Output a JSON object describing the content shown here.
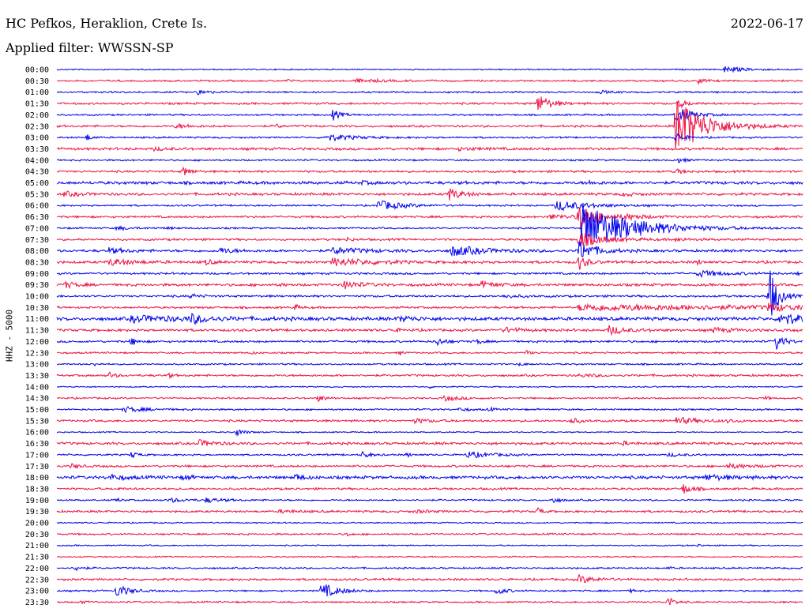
{
  "header": {
    "station": "HC Pefkos, Heraklion, Crete Is.",
    "filter": "Applied filter: WWSSN-SP",
    "date": "2022-06-17"
  },
  "chart_data": {
    "type": "line",
    "title": "HC Pefkos, Heraklion, Crete Is.",
    "subtitle": "Applied filter: WWSSN-SP",
    "date": "2022-06-17",
    "ylabel": "HHZ - 5000",
    "xlabel": "",
    "colors": {
      "even_row": "#0000ee",
      "odd_row": "#ee1144"
    },
    "rows": [
      {
        "label": "00:00",
        "noise": 0.3,
        "events": [
          {
            "t": 0.895,
            "a": 1.3,
            "d": 0.025
          }
        ]
      },
      {
        "label": "00:30",
        "noise": 0.4,
        "events": [
          {
            "t": 0.4,
            "a": 0.6,
            "d": 0.04
          },
          {
            "t": 0.86,
            "a": 1.0,
            "d": 0.01
          },
          {
            "t": 0.31,
            "a": 0.5,
            "d": 0.005
          }
        ]
      },
      {
        "label": "01:00",
        "noise": 0.4,
        "events": [
          {
            "t": 0.19,
            "a": 1.0,
            "d": 0.01
          },
          {
            "t": 0.73,
            "a": 0.6,
            "d": 0.01
          }
        ]
      },
      {
        "label": "01:30",
        "noise": 0.5,
        "events": [
          {
            "t": 0.645,
            "a": 3.5,
            "d": 0.015
          },
          {
            "t": 0.835,
            "a": 1.6,
            "d": 0.01
          }
        ]
      },
      {
        "label": "02:00",
        "noise": 0.4,
        "events": [
          {
            "t": 0.37,
            "a": 2.0,
            "d": 0.01
          },
          {
            "t": 0.83,
            "a": 3.0,
            "d": 0.02
          }
        ]
      },
      {
        "label": "02:30",
        "noise": 0.5,
        "events": [
          {
            "t": 0.83,
            "a": 12,
            "d": 0.035
          },
          {
            "t": 0.16,
            "a": 0.8,
            "d": 0.02
          },
          {
            "t": 0.295,
            "a": 0.8,
            "d": 0.005
          }
        ]
      },
      {
        "label": "03:00",
        "noise": 0.4,
        "events": [
          {
            "t": 0.04,
            "a": 1.3,
            "d": 0.006
          },
          {
            "t": 0.36,
            "a": 1.3,
            "d": 0.035
          },
          {
            "t": 0.83,
            "a": 2.0,
            "d": 0.01
          }
        ]
      },
      {
        "label": "03:30",
        "noise": 0.6,
        "events": [
          {
            "t": 0.13,
            "a": 0.5,
            "d": 0.02
          },
          {
            "t": 0.54,
            "a": 0.5,
            "d": 0.03
          }
        ]
      },
      {
        "label": "04:00",
        "noise": 0.4,
        "events": [
          {
            "t": 0.83,
            "a": 1.2,
            "d": 0.01
          }
        ]
      },
      {
        "label": "04:30",
        "noise": 0.5,
        "events": [
          {
            "t": 0.17,
            "a": 2.0,
            "d": 0.008
          },
          {
            "t": 0.83,
            "a": 1.0,
            "d": 0.01
          }
        ]
      },
      {
        "label": "05:00",
        "noise": 0.7,
        "events": [
          {
            "t": 0.41,
            "a": 0.6,
            "d": 0.01
          },
          {
            "t": 0.71,
            "a": 0.5,
            "d": 0.02
          }
        ]
      },
      {
        "label": "05:30",
        "noise": 0.6,
        "events": [
          {
            "t": 0.525,
            "a": 2.5,
            "d": 0.015
          },
          {
            "t": 0.01,
            "a": 0.8,
            "d": 0.02
          },
          {
            "t": 0.76,
            "a": 0.8,
            "d": 0.01
          }
        ]
      },
      {
        "label": "06:00",
        "noise": 0.4,
        "events": [
          {
            "t": 0.43,
            "a": 2.0,
            "d": 0.03
          },
          {
            "t": 0.67,
            "a": 2.0,
            "d": 0.04
          }
        ]
      },
      {
        "label": "06:30",
        "noise": 0.5,
        "events": [
          {
            "t": 0.7,
            "a": 6.0,
            "d": 0.02
          },
          {
            "t": 0.66,
            "a": 0.8,
            "d": 0.05
          },
          {
            "t": 0.76,
            "a": 0.8,
            "d": 0.03
          }
        ]
      },
      {
        "label": "07:00",
        "noise": 0.4,
        "events": [
          {
            "t": 0.705,
            "a": 10,
            "d": 0.06
          },
          {
            "t": 0.08,
            "a": 0.6,
            "d": 0.02
          },
          {
            "t": 0.15,
            "a": 0.5,
            "d": 0.005
          }
        ]
      },
      {
        "label": "07:30",
        "noise": 0.5,
        "events": [
          {
            "t": 0.39,
            "a": 0.8,
            "d": 0.005
          },
          {
            "t": 0.7,
            "a": 3.0,
            "d": 0.03
          },
          {
            "t": 0.83,
            "a": 0.5,
            "d": 0.02
          }
        ]
      },
      {
        "label": "08:00",
        "noise": 0.6,
        "events": [
          {
            "t": 0.07,
            "a": 1.0,
            "d": 0.02
          },
          {
            "t": 0.22,
            "a": 1.2,
            "d": 0.015
          },
          {
            "t": 0.37,
            "a": 1.2,
            "d": 0.04
          },
          {
            "t": 0.53,
            "a": 2.0,
            "d": 0.04
          },
          {
            "t": 0.7,
            "a": 4.0,
            "d": 0.02
          }
        ]
      },
      {
        "label": "08:30",
        "noise": 0.6,
        "events": [
          {
            "t": 0.07,
            "a": 1.3,
            "d": 0.03
          },
          {
            "t": 0.2,
            "a": 0.9,
            "d": 0.01
          },
          {
            "t": 0.37,
            "a": 1.5,
            "d": 0.05
          },
          {
            "t": 0.7,
            "a": 3.0,
            "d": 0.01
          },
          {
            "t": 0.86,
            "a": 1.0,
            "d": 0.005
          }
        ]
      },
      {
        "label": "09:00",
        "noise": 0.5,
        "events": [
          {
            "t": 0.86,
            "a": 1.2,
            "d": 0.03
          },
          {
            "t": 0.995,
            "a": 0.6,
            "d": 0.01
          }
        ]
      },
      {
        "label": "09:30",
        "noise": 0.6,
        "events": [
          {
            "t": 0.01,
            "a": 1.2,
            "d": 0.015
          },
          {
            "t": 0.385,
            "a": 1.5,
            "d": 0.02
          },
          {
            "t": 0.57,
            "a": 1.2,
            "d": 0.02
          },
          {
            "t": 0.3,
            "a": 0.5,
            "d": 0.005
          }
        ]
      },
      {
        "label": "10:00",
        "noise": 0.5,
        "events": [
          {
            "t": 0.18,
            "a": 0.8,
            "d": 0.01
          },
          {
            "t": 0.6,
            "a": 0.6,
            "d": 0.02
          },
          {
            "t": 0.955,
            "a": 12,
            "d": 0.01
          }
        ]
      },
      {
        "label": "10:30",
        "noise": 0.5,
        "events": [
          {
            "t": 0.32,
            "a": 1.0,
            "d": 0.005
          },
          {
            "t": 0.7,
            "a": 1.2,
            "d": 0.25
          },
          {
            "t": 0.955,
            "a": 1.5,
            "d": 0.02
          }
        ]
      },
      {
        "label": "11:00",
        "noise": 0.8,
        "events": [
          {
            "t": 0.18,
            "a": 1.5,
            "d": 0.02
          },
          {
            "t": 0.1,
            "a": 1.0,
            "d": 0.08
          },
          {
            "t": 0.46,
            "a": 1.0,
            "d": 0.02
          },
          {
            "t": 0.97,
            "a": 3.0,
            "d": 0.02
          }
        ]
      },
      {
        "label": "11:30",
        "noise": 0.6,
        "events": [
          {
            "t": 0.74,
            "a": 1.8,
            "d": 0.02
          },
          {
            "t": 0.6,
            "a": 1.0,
            "d": 0.02
          },
          {
            "t": 0.88,
            "a": 1.0,
            "d": 0.02
          },
          {
            "t": 0.45,
            "a": 0.6,
            "d": 0.01
          }
        ]
      },
      {
        "label": "12:00",
        "noise": 0.5,
        "events": [
          {
            "t": 0.1,
            "a": 1.5,
            "d": 0.008
          },
          {
            "t": 0.51,
            "a": 1.5,
            "d": 0.01
          },
          {
            "t": 0.565,
            "a": 1.0,
            "d": 0.005
          },
          {
            "t": 0.965,
            "a": 3.0,
            "d": 0.01
          }
        ]
      },
      {
        "label": "12:30",
        "noise": 0.4,
        "events": [
          {
            "t": 0.26,
            "a": 0.6,
            "d": 0.005
          },
          {
            "t": 0.46,
            "a": 0.6,
            "d": 0.005
          },
          {
            "t": 0.63,
            "a": 1.0,
            "d": 0.005
          }
        ]
      },
      {
        "label": "13:00",
        "noise": 0.4,
        "events": [
          {
            "t": 0.05,
            "a": 0.6,
            "d": 0.005
          },
          {
            "t": 0.62,
            "a": 0.5,
            "d": 0.01
          }
        ]
      },
      {
        "label": "13:30",
        "noise": 0.5,
        "events": [
          {
            "t": 0.07,
            "a": 1.2,
            "d": 0.008
          },
          {
            "t": 0.15,
            "a": 0.8,
            "d": 0.005
          },
          {
            "t": 0.7,
            "a": 0.5,
            "d": 0.03
          }
        ]
      },
      {
        "label": "14:00",
        "noise": 0.3,
        "events": [
          {
            "t": 0.5,
            "a": 0.4,
            "d": 0.005
          }
        ]
      },
      {
        "label": "14:30",
        "noise": 0.4,
        "events": [
          {
            "t": 0.35,
            "a": 1.2,
            "d": 0.01
          },
          {
            "t": 0.52,
            "a": 1.0,
            "d": 0.02
          },
          {
            "t": 0.95,
            "a": 0.6,
            "d": 0.005
          }
        ]
      },
      {
        "label": "15:00",
        "noise": 0.4,
        "events": [
          {
            "t": 0.09,
            "a": 1.0,
            "d": 0.03
          },
          {
            "t": 0.54,
            "a": 0.8,
            "d": 0.01
          },
          {
            "t": 0.58,
            "a": 0.8,
            "d": 0.005
          }
        ]
      },
      {
        "label": "15:30",
        "noise": 0.5,
        "events": [
          {
            "t": 0.48,
            "a": 0.8,
            "d": 0.02
          },
          {
            "t": 0.69,
            "a": 1.2,
            "d": 0.01
          },
          {
            "t": 0.83,
            "a": 1.3,
            "d": 0.03
          },
          {
            "t": 0.9,
            "a": 0.6,
            "d": 0.01
          }
        ]
      },
      {
        "label": "16:00",
        "noise": 0.3,
        "events": [
          {
            "t": 0.24,
            "a": 1.5,
            "d": 0.01
          }
        ]
      },
      {
        "label": "16:30",
        "noise": 0.6,
        "events": [
          {
            "t": 0.19,
            "a": 1.2,
            "d": 0.02
          },
          {
            "t": 0.76,
            "a": 0.6,
            "d": 0.01
          }
        ]
      },
      {
        "label": "17:00",
        "noise": 0.4,
        "events": [
          {
            "t": 0.1,
            "a": 1.2,
            "d": 0.008
          },
          {
            "t": 0.41,
            "a": 1.2,
            "d": 0.01
          },
          {
            "t": 0.47,
            "a": 0.8,
            "d": 0.005
          },
          {
            "t": 0.55,
            "a": 1.2,
            "d": 0.03
          },
          {
            "t": 0.82,
            "a": 0.6,
            "d": 0.02
          }
        ]
      },
      {
        "label": "17:30",
        "noise": 0.5,
        "events": [
          {
            "t": 0.02,
            "a": 0.8,
            "d": 0.01
          },
          {
            "t": 0.9,
            "a": 0.8,
            "d": 0.03
          }
        ]
      },
      {
        "label": "18:00",
        "noise": 0.7,
        "events": [
          {
            "t": 0.07,
            "a": 1.0,
            "d": 0.02
          },
          {
            "t": 0.32,
            "a": 1.2,
            "d": 0.01
          },
          {
            "t": 0.17,
            "a": 0.8,
            "d": 0.01
          },
          {
            "t": 0.87,
            "a": 1.0,
            "d": 0.03
          }
        ]
      },
      {
        "label": "18:30",
        "noise": 0.5,
        "events": [
          {
            "t": 0.84,
            "a": 2.0,
            "d": 0.01
          },
          {
            "t": 0.08,
            "a": 0.5,
            "d": 0.005
          }
        ]
      },
      {
        "label": "19:00",
        "noise": 0.4,
        "events": [
          {
            "t": 0.08,
            "a": 0.8,
            "d": 0.005
          },
          {
            "t": 0.15,
            "a": 0.8,
            "d": 0.02
          },
          {
            "t": 0.2,
            "a": 0.8,
            "d": 0.02
          },
          {
            "t": 0.665,
            "a": 1.2,
            "d": 0.008
          }
        ]
      },
      {
        "label": "19:30",
        "noise": 0.5,
        "events": [
          {
            "t": 0.3,
            "a": 0.6,
            "d": 0.02
          },
          {
            "t": 0.645,
            "a": 1.5,
            "d": 0.005
          },
          {
            "t": 0.48,
            "a": 0.5,
            "d": 0.02
          }
        ]
      },
      {
        "label": "20:00",
        "noise": 0.3,
        "events": []
      },
      {
        "label": "20:30",
        "noise": 0.4,
        "events": [
          {
            "t": 0.39,
            "a": 0.6,
            "d": 0.005
          }
        ]
      },
      {
        "label": "21:00",
        "noise": 0.3,
        "events": [
          {
            "t": 0.86,
            "a": 0.5,
            "d": 0.005
          }
        ]
      },
      {
        "label": "21:30",
        "noise": 0.3,
        "events": []
      },
      {
        "label": "22:00",
        "noise": 0.4,
        "events": [
          {
            "t": 0.025,
            "a": 1.2,
            "d": 0.008
          },
          {
            "t": 0.82,
            "a": 0.5,
            "d": 0.005
          }
        ]
      },
      {
        "label": "22:30",
        "noise": 0.5,
        "events": [
          {
            "t": 0.7,
            "a": 1.5,
            "d": 0.02
          }
        ]
      },
      {
        "label": "23:00",
        "noise": 0.4,
        "events": [
          {
            "t": 0.08,
            "a": 2.5,
            "d": 0.015
          },
          {
            "t": 0.355,
            "a": 3.0,
            "d": 0.02
          },
          {
            "t": 0.59,
            "a": 1.5,
            "d": 0.01
          },
          {
            "t": 0.77,
            "a": 0.6,
            "d": 0.005
          }
        ]
      },
      {
        "label": "23:30",
        "noise": 0.4,
        "events": [
          {
            "t": 0.82,
            "a": 2.0,
            "d": 0.008
          },
          {
            "t": 0.03,
            "a": 0.5,
            "d": 0.01
          }
        ]
      }
    ],
    "grid": false
  }
}
